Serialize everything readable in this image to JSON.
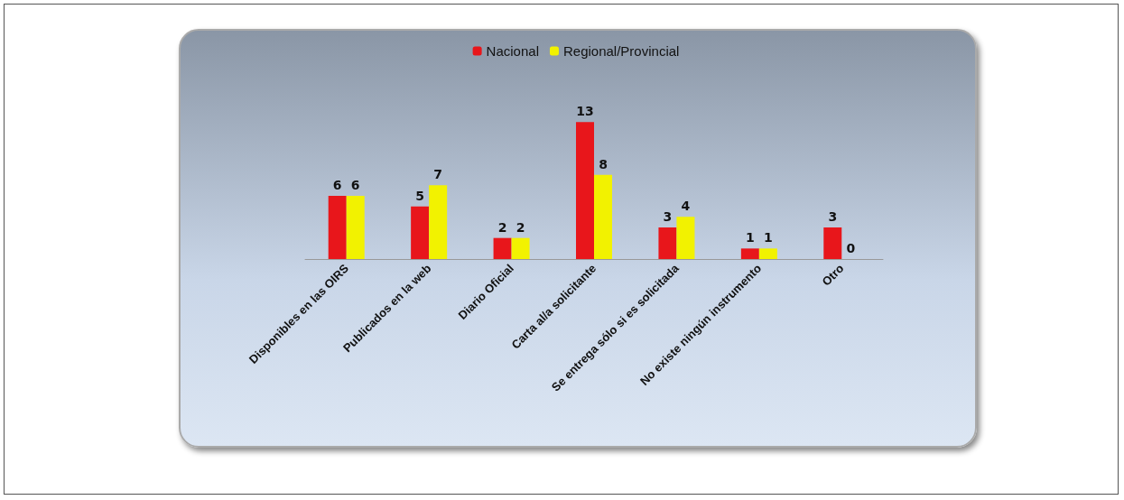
{
  "chart_data": {
    "type": "bar",
    "categories": [
      "Disponibles en las OIRS",
      "Publicados en la web",
      "Diario Oficial",
      "Carta al/a solicitante",
      "Se entrega sólo si es solicitada",
      "No existe ningún instrumento",
      "Otro"
    ],
    "series": [
      {
        "name": "Nacional",
        "color": "#e8161b",
        "values": [
          6,
          5,
          2,
          13,
          3,
          1,
          3
        ]
      },
      {
        "name": "Regional/Provincial",
        "color": "#f2f200",
        "values": [
          6,
          7,
          2,
          8,
          4,
          1,
          0
        ]
      }
    ],
    "data_labels": true,
    "legend": "top"
  }
}
